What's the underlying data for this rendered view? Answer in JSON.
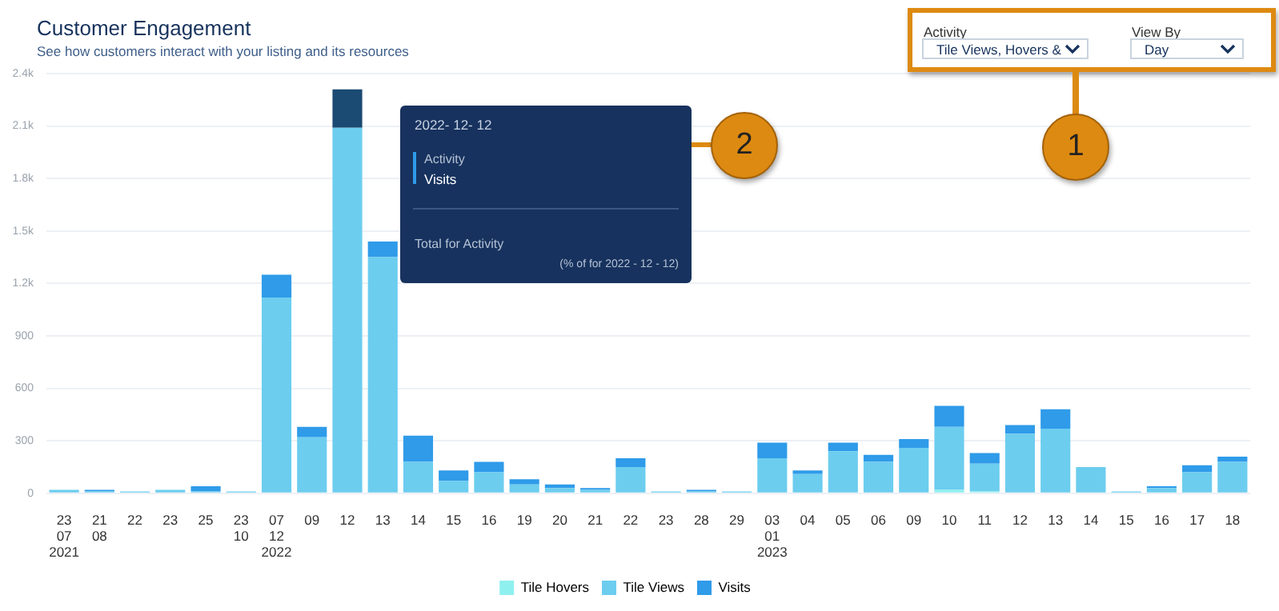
{
  "chart_data": {
    "type": "bar",
    "title": "Customer Engagement",
    "subtitle": "See how customers interact with your listing and its resources",
    "categories": [
      "23\n07\n2021",
      "21\n08",
      "22",
      "23",
      "25",
      "23\n10",
      "07\n12\n2022",
      "09",
      "12",
      "13",
      "14",
      "15",
      "16",
      "19",
      "20",
      "21",
      "22",
      "23",
      "28",
      "29",
      "03\n01\n2023",
      "04",
      "05",
      "06",
      "09",
      "10",
      "11",
      "12",
      "13",
      "14",
      "15",
      "16",
      "17",
      "18"
    ],
    "series": [
      {
        "name": "Tile Hovers",
        "color": "#8ff0f0",
        "values": [
          0,
          0,
          0,
          0,
          0,
          0,
          0,
          0,
          0,
          0,
          0,
          0,
          0,
          0,
          0,
          0,
          0,
          0,
          0,
          0,
          0,
          0,
          0,
          0,
          0,
          20,
          10,
          0,
          0,
          0,
          0,
          0,
          0,
          0
        ]
      },
      {
        "name": "Tile Views",
        "color": "#6ccdef",
        "values": [
          20,
          10,
          10,
          20,
          10,
          10,
          1120,
          320,
          2090,
          1350,
          180,
          70,
          120,
          50,
          30,
          20,
          150,
          10,
          10,
          10,
          200,
          110,
          240,
          180,
          260,
          360,
          160,
          340,
          370,
          150,
          10,
          30,
          120,
          180
        ]
      },
      {
        "name": "Visits",
        "color": "#2f9be9",
        "colors": [
          "#2f9be9",
          "#2f9be9",
          "#2f9be9",
          "#2f9be9",
          "#2f9be9",
          "#2f9be9",
          "#2f9be9",
          "#2f9be9",
          "#1b4a72",
          "#2f9be9",
          "#2f9be9",
          "#2f9be9",
          "#2f9be9",
          "#2f9be9",
          "#2f9be9",
          "#2f9be9",
          "#2f9be9",
          "#2f9be9",
          "#2f9be9",
          "#2f9be9",
          "#2f9be9",
          "#2f9be9",
          "#2f9be9",
          "#2f9be9",
          "#2f9be9",
          "#2f9be9",
          "#2f9be9",
          "#2f9be9",
          "#2f9be9",
          "#2f9be9",
          "#2f9be9",
          "#2f9be9",
          "#2f9be9",
          "#2f9be9"
        ],
        "values": [
          0,
          10,
          0,
          0,
          30,
          0,
          130,
          60,
          220,
          90,
          150,
          60,
          60,
          30,
          20,
          10,
          50,
          0,
          10,
          0,
          90,
          20,
          50,
          40,
          50,
          120,
          60,
          50,
          110,
          0,
          0,
          10,
          40,
          30
        ]
      }
    ],
    "stacked": true,
    "ylim": [
      0,
      2400
    ],
    "yticks": [
      0,
      {
        "value": 300,
        "label": "300"
      },
      {
        "value": 600,
        "label": "600"
      },
      {
        "value": 900,
        "label": "900"
      },
      {
        "value": 1200,
        "label": "1.2k"
      },
      {
        "value": 1500,
        "label": "1.5k"
      },
      {
        "value": 1800,
        "label": "1.8k"
      },
      {
        "value": 2100,
        "label": "2.1k"
      },
      {
        "value": 2400,
        "label": "2.4k"
      }
    ],
    "grid": "y",
    "legend": "bottom",
    "annotations": [
      "Activity",
      "Tile Views, Hovers &",
      "View By",
      "Day",
      "1",
      "2",
      "2022- 12- 12",
      "Activity",
      "Visits",
      "Total for Activity",
      "(% of for 2022 - 12 - 12)"
    ]
  }
}
